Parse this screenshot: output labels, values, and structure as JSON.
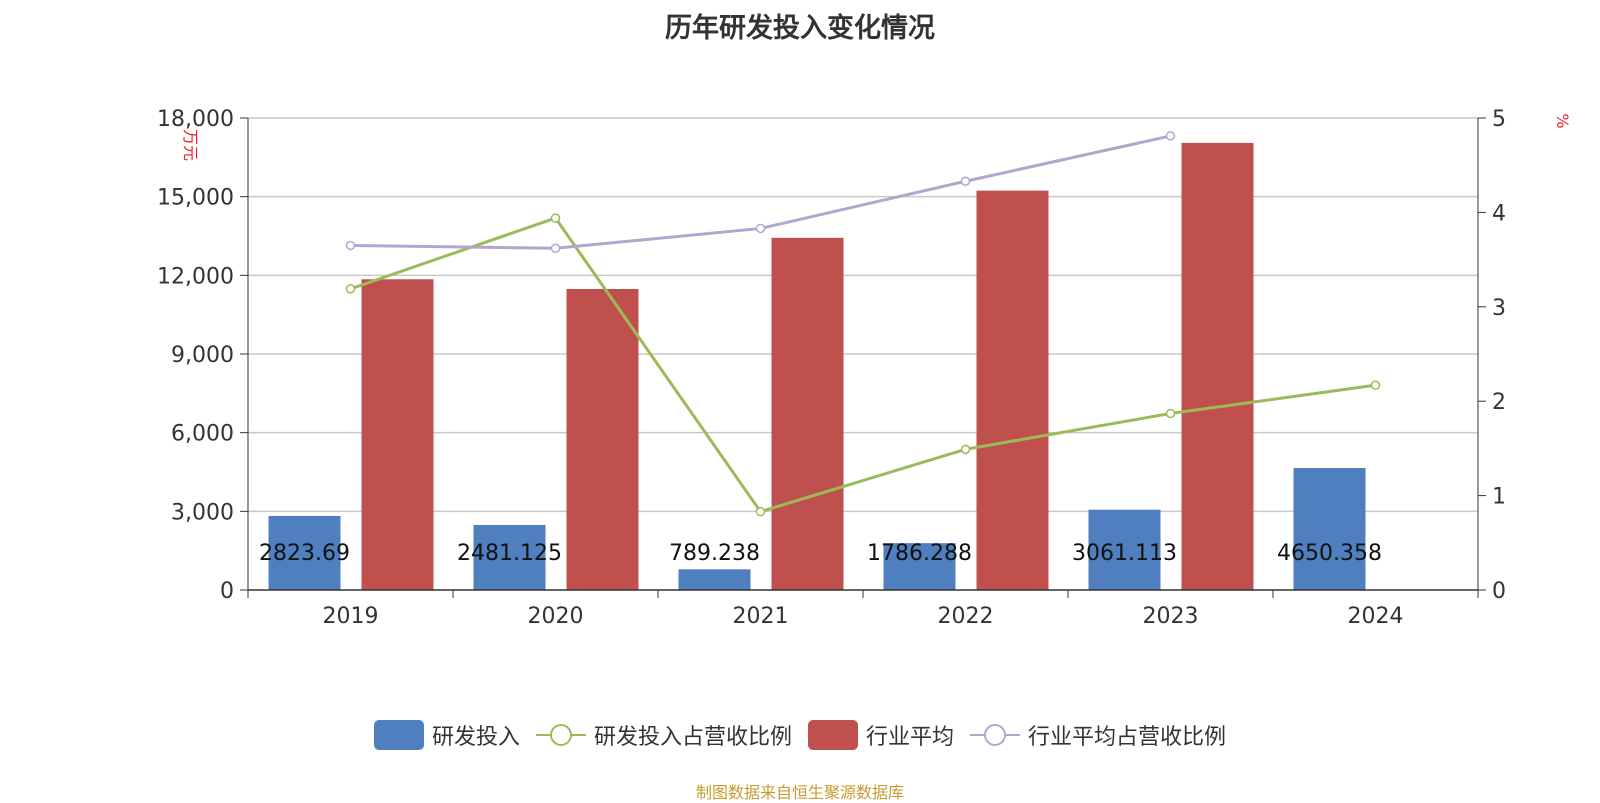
{
  "chart_data": {
    "type": "bar",
    "title": "历年研发投入变化情况",
    "categories": [
      "2019",
      "2020",
      "2021",
      "2022",
      "2023",
      "2024"
    ],
    "y_left": {
      "unit_label": "万元",
      "ticks": [
        "0",
        "3,000",
        "6,000",
        "9,000",
        "12,000",
        "15,000",
        "18,000"
      ],
      "ylim": [
        0,
        18000
      ]
    },
    "y_right": {
      "unit_label": "%",
      "ticks": [
        "0",
        "1",
        "2",
        "3",
        "4",
        "5"
      ],
      "ylim": [
        0,
        5
      ]
    },
    "series": [
      {
        "name": "研发投入",
        "type": "bar",
        "axis": "left",
        "color": "#4f7fbf",
        "values": [
          2823.69,
          2481.125,
          789.238,
          1786.288,
          3061.113,
          4650.358
        ],
        "labels": [
          "2823.69",
          "2481.125",
          "789.238",
          "1786.288",
          "3061.113",
          "4650.358"
        ]
      },
      {
        "name": "研发投入占营收比例",
        "type": "line",
        "axis": "right",
        "color": "#9bbb59",
        "values": [
          3.19,
          3.94,
          0.83,
          1.49,
          1.87,
          2.17
        ]
      },
      {
        "name": "行业平均",
        "type": "bar",
        "axis": "left",
        "color": "#c0504d",
        "values": [
          11850,
          11480,
          13430,
          15230,
          17050,
          null
        ]
      },
      {
        "name": "行业平均占营收比例",
        "type": "line",
        "axis": "right",
        "color": "#b3a5cf",
        "values": [
          3.65,
          3.62,
          3.83,
          4.33,
          4.81,
          null
        ]
      }
    ],
    "grid": true,
    "legend_position": "bottom"
  },
  "footer": {
    "source": "制图数据来自恒生聚源数据库"
  }
}
